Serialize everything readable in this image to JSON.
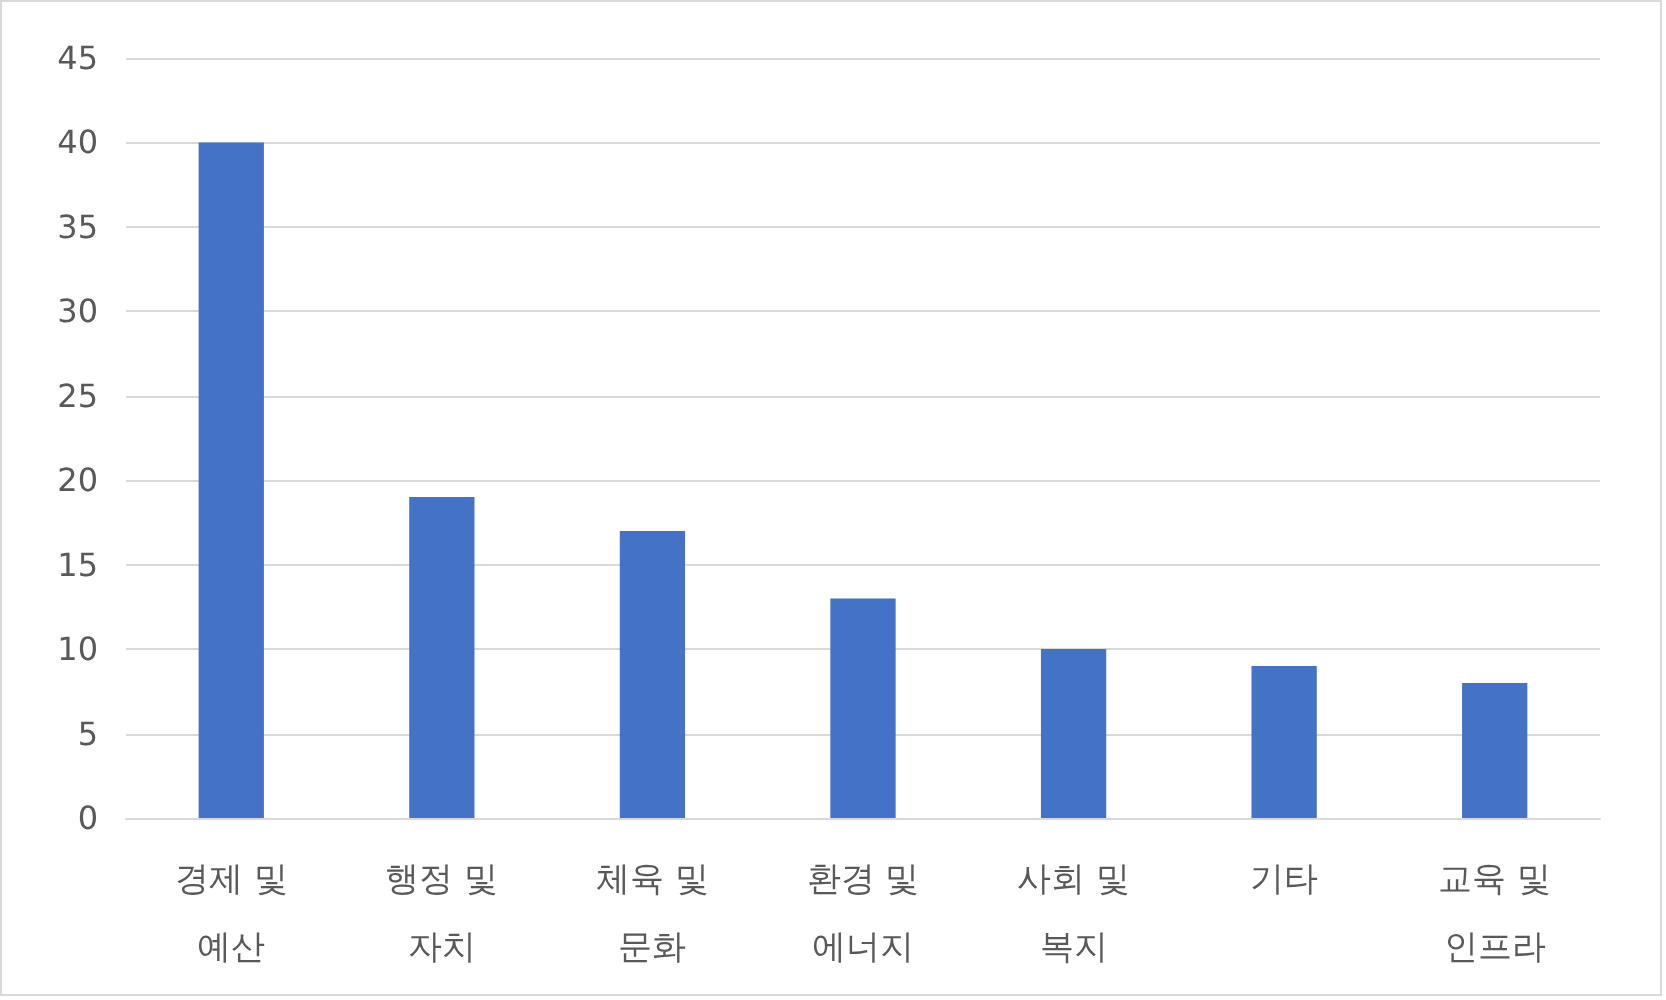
{
  "chart_data": {
    "type": "bar",
    "categories": [
      "경제 및 예산",
      "행정 및 자치",
      "체육 및 문화",
      "환경 및 에너지",
      "사회 및 복지",
      "기타",
      "교육 및 인프라"
    ],
    "values": [
      40,
      19,
      17,
      13,
      10,
      9,
      8
    ],
    "color": "#4472c4",
    "ylim": [
      0,
      45
    ],
    "yticks": [
      0,
      5,
      10,
      15,
      20,
      25,
      30,
      35,
      40,
      45
    ],
    "grid": "y"
  }
}
